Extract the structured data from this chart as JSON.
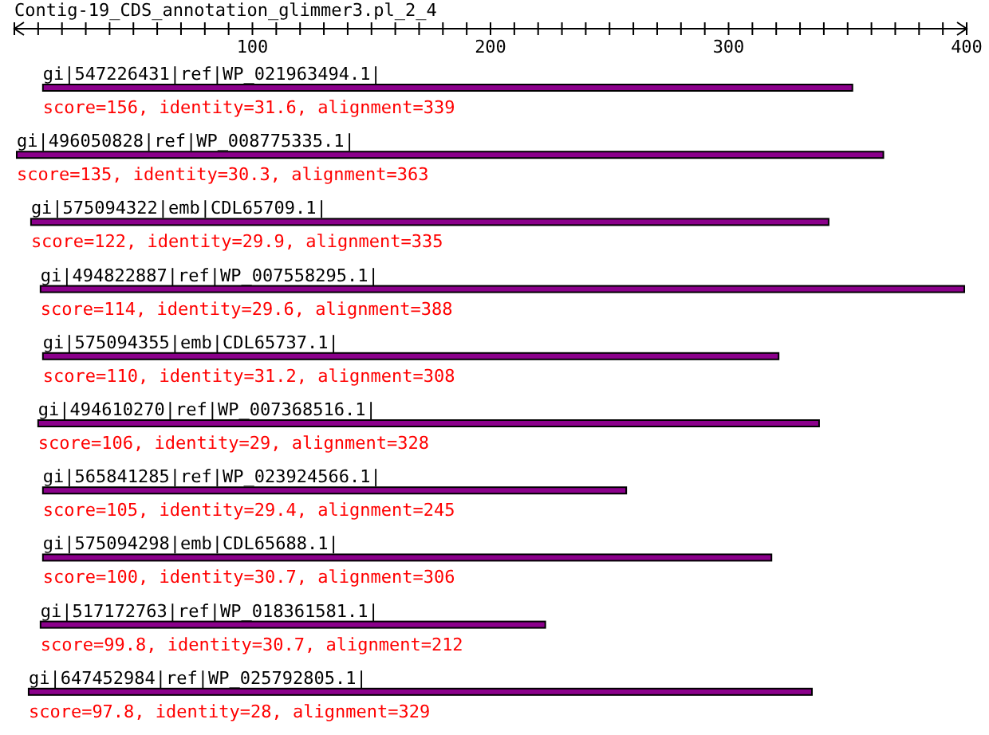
{
  "chart_data": {
    "type": "bar",
    "orientation": "horizontal",
    "title": "Contig-19_CDS_annotation_glimmer3.pl_2_4",
    "categories": [
      "gi|547226431|ref|WP_021963494.1|",
      "gi|496050828|ref|WP_008775335.1|",
      "gi|575094322|emb|CDL65709.1|",
      "gi|494822887|ref|WP_007558295.1|",
      "gi|575094355|emb|CDL65737.1|",
      "gi|494610270|ref|WP_007368516.1|",
      "gi|565841285|ref|WP_023924566.1|",
      "gi|575094298|emb|CDL65688.1|",
      "gi|517172763|ref|WP_018361581.1|",
      "gi|647452984|ref|WP_025792805.1|"
    ],
    "base": [
      12,
      1,
      7,
      11,
      12,
      10,
      12,
      12,
      11,
      6
    ],
    "values": [
      340,
      364,
      335,
      388,
      309,
      328,
      245,
      306,
      212,
      329
    ],
    "color": "#8b008b",
    "xlim": [
      0,
      400
    ],
    "xticks": [
      {
        "value": 0,
        "label": null
      },
      {
        "value": 10,
        "label": null
      },
      {
        "value": 20,
        "label": null
      },
      {
        "value": 30,
        "label": null
      },
      {
        "value": 40,
        "label": null
      },
      {
        "value": 50,
        "label": null
      },
      {
        "value": 60,
        "label": null
      },
      {
        "value": 70,
        "label": null
      },
      {
        "value": 80,
        "label": null
      },
      {
        "value": 90,
        "label": null
      },
      100,
      {
        "value": 110,
        "label": null
      },
      {
        "value": 120,
        "label": null
      },
      {
        "value": 130,
        "label": null
      },
      {
        "value": 140,
        "label": null
      },
      {
        "value": 150,
        "label": null
      },
      {
        "value": 160,
        "label": null
      },
      {
        "value": 170,
        "label": null
      },
      {
        "value": 180,
        "label": null
      },
      {
        "value": 190,
        "label": null
      },
      200,
      {
        "value": 210,
        "label": null
      },
      {
        "value": 220,
        "label": null
      },
      {
        "value": 230,
        "label": null
      },
      {
        "value": 240,
        "label": null
      },
      {
        "value": 250,
        "label": null
      },
      {
        "value": 260,
        "label": null
      },
      {
        "value": 270,
        "label": null
      },
      {
        "value": 280,
        "label": null
      },
      {
        "value": 290,
        "label": null
      },
      300,
      {
        "value": 310,
        "label": null
      },
      {
        "value": 320,
        "label": null
      },
      {
        "value": 330,
        "label": null
      },
      {
        "value": 340,
        "label": null
      },
      {
        "value": 350,
        "label": null
      },
      {
        "value": 360,
        "label": null
      },
      {
        "value": 370,
        "label": null
      },
      {
        "value": 380,
        "label": null
      },
      {
        "value": 390,
        "label": null
      },
      400
    ],
    "annotations": [
      "score=156, identity=31.6, alignment=339",
      "score=135, identity=30.3, alignment=363",
      "score=122, identity=29.9, alignment=335",
      "score=114, identity=29.6, alignment=388",
      "score=110, identity=31.2, alignment=308",
      "score=106, identity=29, alignment=328",
      "score=105, identity=29.4, alignment=245",
      "score=100, identity=30.7, alignment=306",
      "score=99.8, identity=30.7, alignment=212",
      "score=97.8, identity=28, alignment=329"
    ]
  }
}
